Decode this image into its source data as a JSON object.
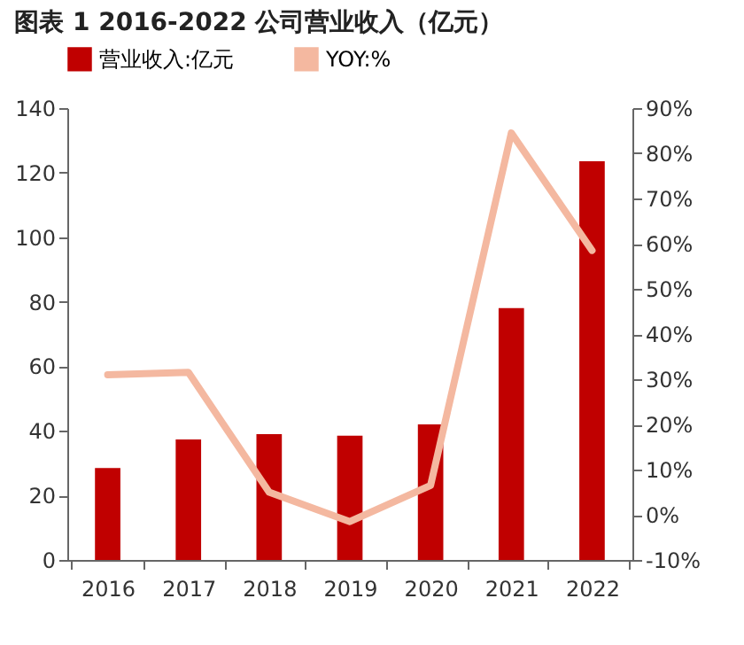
{
  "chart_data": {
    "type": "bar",
    "title": "图表 1 2016-2022 公司营业收入（亿元）",
    "categories": [
      "2016",
      "2017",
      "2018",
      "2019",
      "2020",
      "2021",
      "2022"
    ],
    "series": [
      {
        "name": "营业收入:亿元",
        "color": "#c00000",
        "values": [
          28.5,
          37.3,
          39,
          38.5,
          42,
          78,
          123.5
        ]
      },
      {
        "name": "YOY:%",
        "type": "line",
        "axis": "y2",
        "color": "#f4b8a0",
        "values": [
          31,
          31.5,
          5,
          -1.5,
          6.5,
          84.5,
          58.5
        ]
      }
    ],
    "ylim": [
      0,
      140
    ],
    "yticks": [
      0,
      20,
      40,
      60,
      80,
      100,
      120,
      140
    ],
    "y2lim": [
      -10,
      90
    ],
    "y2ticks": [
      {
        "value": -10,
        "label": "-10%"
      },
      {
        "value": 0,
        "label": "0%"
      },
      {
        "value": 10,
        "label": "10%"
      },
      {
        "value": 20,
        "label": "20%"
      },
      {
        "value": 30,
        "label": "30%"
      },
      {
        "value": 40,
        "label": "40%"
      },
      {
        "value": 50,
        "label": "50%"
      },
      {
        "value": 60,
        "label": "60%"
      },
      {
        "value": 70,
        "label": "70%"
      },
      {
        "value": 80,
        "label": "80%"
      },
      {
        "value": 90,
        "label": "90%"
      }
    ],
    "legend": "top"
  }
}
